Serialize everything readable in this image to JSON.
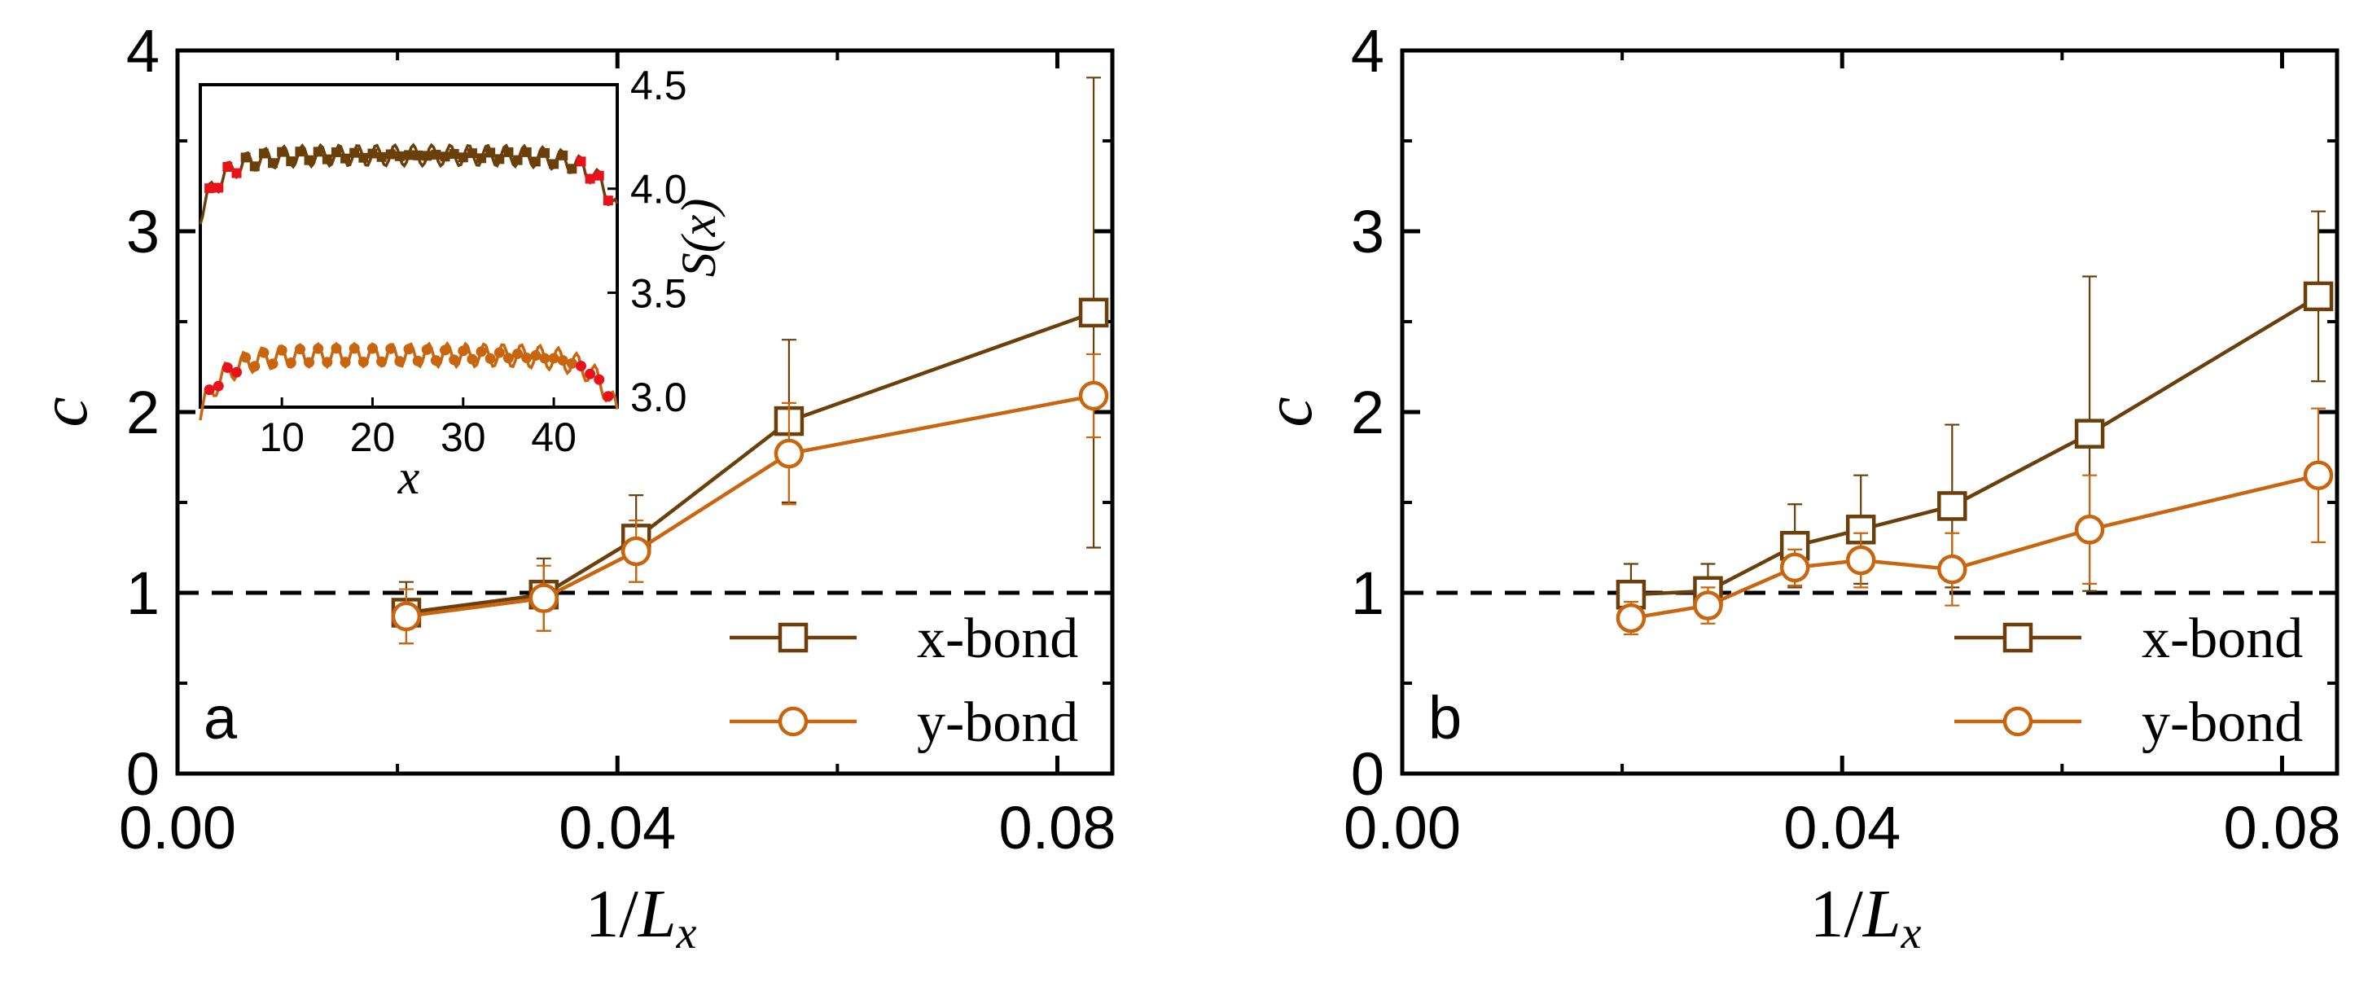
{
  "colors": {
    "x_bond": "#6b3f0a",
    "y_bond": "#c8650e",
    "endpoint": "#e8121a",
    "reference": "#000000"
  },
  "chart_data": [
    {
      "type": "line",
      "panel_label": "a",
      "xlabel_main": "1/L",
      "xlabel_sub": "x",
      "ylabel": "c",
      "xlim": [
        0.0,
        0.085
      ],
      "ylim": [
        0,
        4
      ],
      "xticks": [
        "0.00",
        "0.04",
        "0.08"
      ],
      "xtick_values": [
        0.0,
        0.04,
        0.08
      ],
      "yticks": [
        "0",
        "1",
        "2",
        "3",
        "4"
      ],
      "ytick_values": [
        0,
        1,
        2,
        3,
        4
      ],
      "reference_line": 1,
      "legend": {
        "position": "bottom-right"
      },
      "series": [
        {
          "name": "x-bond",
          "marker": "square",
          "color_key": "x_bond",
          "x": [
            0.0208,
            0.0333,
            0.0417,
            0.0556,
            0.0833
          ],
          "y": [
            0.89,
            0.99,
            1.3,
            1.95,
            2.55
          ],
          "err": [
            0.17,
            0.2,
            0.24,
            0.45,
            1.3
          ]
        },
        {
          "name": "y-bond",
          "marker": "circle",
          "color_key": "y_bond",
          "x": [
            0.0208,
            0.0333,
            0.0417,
            0.0556,
            0.0833
          ],
          "y": [
            0.87,
            0.97,
            1.23,
            1.77,
            2.09
          ],
          "err": [
            0.15,
            0.18,
            0.17,
            0.28,
            0.23
          ]
        }
      ],
      "inset": {
        "xlabel": "x",
        "ylabel": "S(x)",
        "xlim": [
          1,
          47
        ],
        "ylim": [
          2.95,
          4.5
        ],
        "xticks": [
          "10",
          "20",
          "30",
          "40"
        ],
        "xtick_values": [
          10,
          20,
          30,
          40
        ],
        "yticks": [
          "3.0",
          "3.5",
          "4.0",
          "4.5"
        ],
        "ytick_values": [
          3.0,
          3.5,
          4.0,
          4.5
        ],
        "y_axis_side": "right",
        "series": [
          {
            "marker": "square",
            "color_key": "x_bond",
            "base": 4.16,
            "amplitude": 0.05
          },
          {
            "marker": "circle",
            "color_key": "y_bond",
            "base": 3.2,
            "amplitude": 0.055
          }
        ]
      }
    },
    {
      "type": "line",
      "panel_label": "b",
      "xlabel_main": "1/L",
      "xlabel_sub": "x",
      "ylabel": "c",
      "xlim": [
        0.0,
        0.085
      ],
      "ylim": [
        0,
        4
      ],
      "xticks": [
        "0.00",
        "0.04",
        "0.08"
      ],
      "xtick_values": [
        0.0,
        0.04,
        0.08
      ],
      "yticks": [
        "0",
        "1",
        "2",
        "3",
        "4"
      ],
      "ytick_values": [
        0,
        1,
        2,
        3,
        4
      ],
      "reference_line": 1,
      "legend": {
        "position": "bottom-right"
      },
      "series": [
        {
          "name": "x-bond",
          "marker": "square",
          "color_key": "x_bond",
          "x": [
            0.0208,
            0.0278,
            0.0357,
            0.0417,
            0.05,
            0.0625,
            0.0833
          ],
          "y": [
            0.99,
            1.01,
            1.26,
            1.35,
            1.48,
            1.88,
            2.64
          ],
          "err": [
            0.17,
            0.15,
            0.23,
            0.3,
            0.45,
            0.87,
            0.47
          ]
        },
        {
          "name": "y-bond",
          "marker": "circle",
          "color_key": "y_bond",
          "x": [
            0.0208,
            0.0278,
            0.0357,
            0.0417,
            0.05,
            0.0625,
            0.0833
          ],
          "y": [
            0.86,
            0.93,
            1.14,
            1.18,
            1.13,
            1.35,
            1.65
          ],
          "err": [
            0.09,
            0.1,
            0.1,
            0.15,
            0.2,
            0.3,
            0.37
          ]
        }
      ]
    }
  ]
}
